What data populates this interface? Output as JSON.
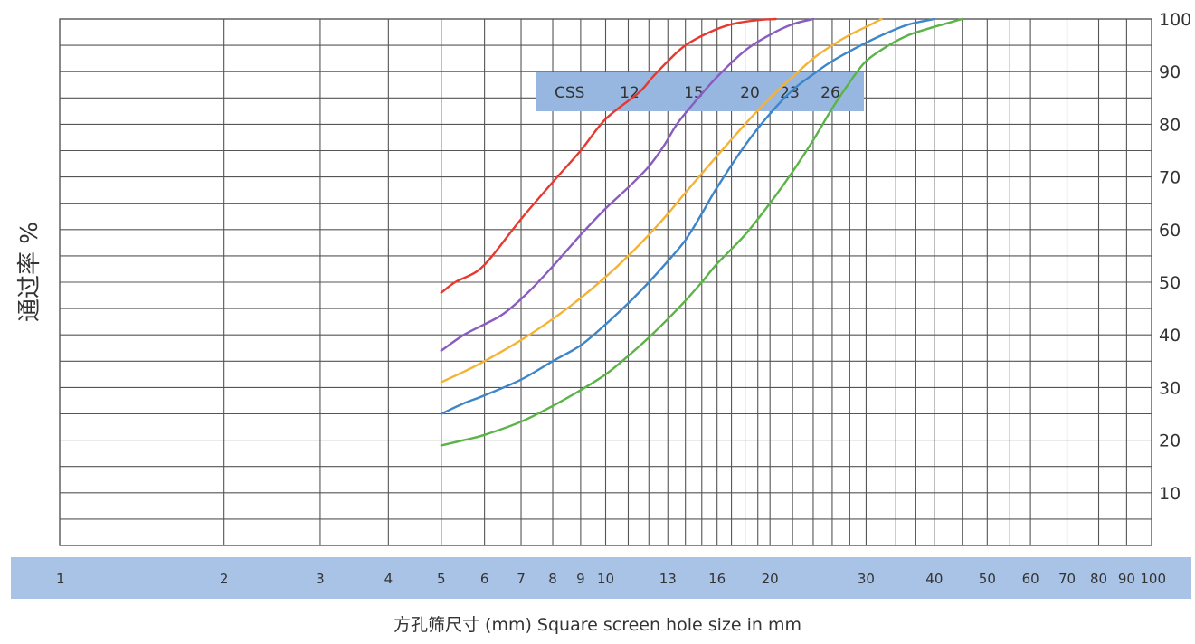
{
  "chart_data": {
    "type": "line",
    "xscale": "log",
    "xlim": [
      1,
      100
    ],
    "ylim": [
      0,
      100
    ],
    "grid": true,
    "xlabel": "方孔筛尺寸 (mm)  Square screen hole size in mm",
    "ylabel": "通过率 %",
    "x_tick_labels": [
      "1",
      "2",
      "3",
      "4",
      "5",
      "6",
      "7",
      "8",
      "9",
      "10",
      "13",
      "16",
      "20",
      "30",
      "40",
      "50",
      "60",
      "70",
      "80",
      "90",
      "100"
    ],
    "x_gridlines": [
      2,
      3,
      4,
      5,
      6,
      7,
      8,
      9,
      10,
      11,
      12,
      13,
      14,
      15,
      16,
      17,
      18,
      19,
      20,
      22,
      24,
      26,
      28,
      30,
      34,
      37,
      40,
      45,
      50,
      55,
      60,
      70,
      80,
      90
    ],
    "y_tick_labels": [
      "10",
      "20",
      "30",
      "40",
      "50",
      "60",
      "70",
      "80",
      "90",
      "100"
    ],
    "legend": {
      "position": "top-center",
      "title": "CSS",
      "entries": [
        "12",
        "15",
        "20",
        "23",
        "26"
      ]
    },
    "colors": {
      "grid": "#555555",
      "band": "#a9c3e6",
      "legend_box": "#97b7e1"
    },
    "series": [
      {
        "name": "12",
        "color": "#e8392f",
        "points": [
          [
            5,
            48
          ],
          [
            5.3,
            50
          ],
          [
            5.8,
            52
          ],
          [
            6.2,
            55
          ],
          [
            7,
            62
          ],
          [
            8,
            69
          ],
          [
            9,
            75
          ],
          [
            10,
            81
          ],
          [
            11.5,
            86
          ],
          [
            12.2,
            89
          ],
          [
            13,
            92
          ],
          [
            14,
            95
          ],
          [
            15.5,
            97.5
          ],
          [
            17,
            99
          ],
          [
            19,
            99.8
          ],
          [
            20.5,
            100
          ]
        ]
      },
      {
        "name": "15",
        "color": "#8a5cc0",
        "points": [
          [
            5,
            37
          ],
          [
            5.5,
            40
          ],
          [
            6,
            42
          ],
          [
            6.5,
            44
          ],
          [
            7.2,
            48
          ],
          [
            8,
            53
          ],
          [
            9,
            59
          ],
          [
            10,
            64
          ],
          [
            11,
            68
          ],
          [
            12,
            72
          ],
          [
            12.8,
            76
          ],
          [
            13.5,
            80
          ],
          [
            14.5,
            84
          ],
          [
            16,
            89
          ],
          [
            18,
            94
          ],
          [
            20,
            97
          ],
          [
            22,
            99
          ],
          [
            24,
            100
          ]
        ]
      },
      {
        "name": "20",
        "color": "#f5b335",
        "points": [
          [
            5,
            31
          ],
          [
            5.5,
            33
          ],
          [
            6,
            35
          ],
          [
            7,
            39
          ],
          [
            8,
            43
          ],
          [
            9,
            47
          ],
          [
            10,
            51
          ],
          [
            11,
            55
          ],
          [
            12,
            59
          ],
          [
            13,
            63
          ],
          [
            14,
            67
          ],
          [
            16,
            74
          ],
          [
            18,
            80
          ],
          [
            20,
            85
          ],
          [
            22,
            89
          ],
          [
            24,
            92.5
          ],
          [
            26,
            95
          ],
          [
            28,
            97
          ],
          [
            30,
            98.5
          ],
          [
            32,
            100
          ]
        ]
      },
      {
        "name": "23",
        "color": "#3d86cb",
        "points": [
          [
            5,
            25
          ],
          [
            5.5,
            27
          ],
          [
            6,
            28.5
          ],
          [
            7,
            31.5
          ],
          [
            8,
            35
          ],
          [
            9,
            38
          ],
          [
            10,
            42
          ],
          [
            11,
            46
          ],
          [
            12,
            50
          ],
          [
            13,
            54
          ],
          [
            14,
            58
          ],
          [
            15,
            63
          ],
          [
            16,
            68
          ],
          [
            18,
            76
          ],
          [
            20,
            82
          ],
          [
            22,
            86.5
          ],
          [
            24,
            89.5
          ],
          [
            26,
            92
          ],
          [
            30,
            95.5
          ],
          [
            33,
            97.5
          ],
          [
            36,
            99
          ],
          [
            40,
            100
          ]
        ]
      },
      {
        "name": "26",
        "color": "#5ab446",
        "points": [
          [
            5,
            19
          ],
          [
            5.5,
            20
          ],
          [
            6,
            21
          ],
          [
            7,
            23.5
          ],
          [
            8,
            26.5
          ],
          [
            9,
            29.5
          ],
          [
            10,
            32.5
          ],
          [
            11,
            36
          ],
          [
            12,
            39.5
          ],
          [
            13,
            43
          ],
          [
            14,
            46.5
          ],
          [
            15,
            50
          ],
          [
            16,
            53.5
          ],
          [
            18,
            59
          ],
          [
            20,
            65
          ],
          [
            22,
            71
          ],
          [
            24,
            77
          ],
          [
            26,
            83
          ],
          [
            28,
            88
          ],
          [
            30,
            92
          ],
          [
            33,
            95
          ],
          [
            36,
            97
          ],
          [
            40,
            98.5
          ],
          [
            45,
            100
          ]
        ]
      }
    ]
  }
}
